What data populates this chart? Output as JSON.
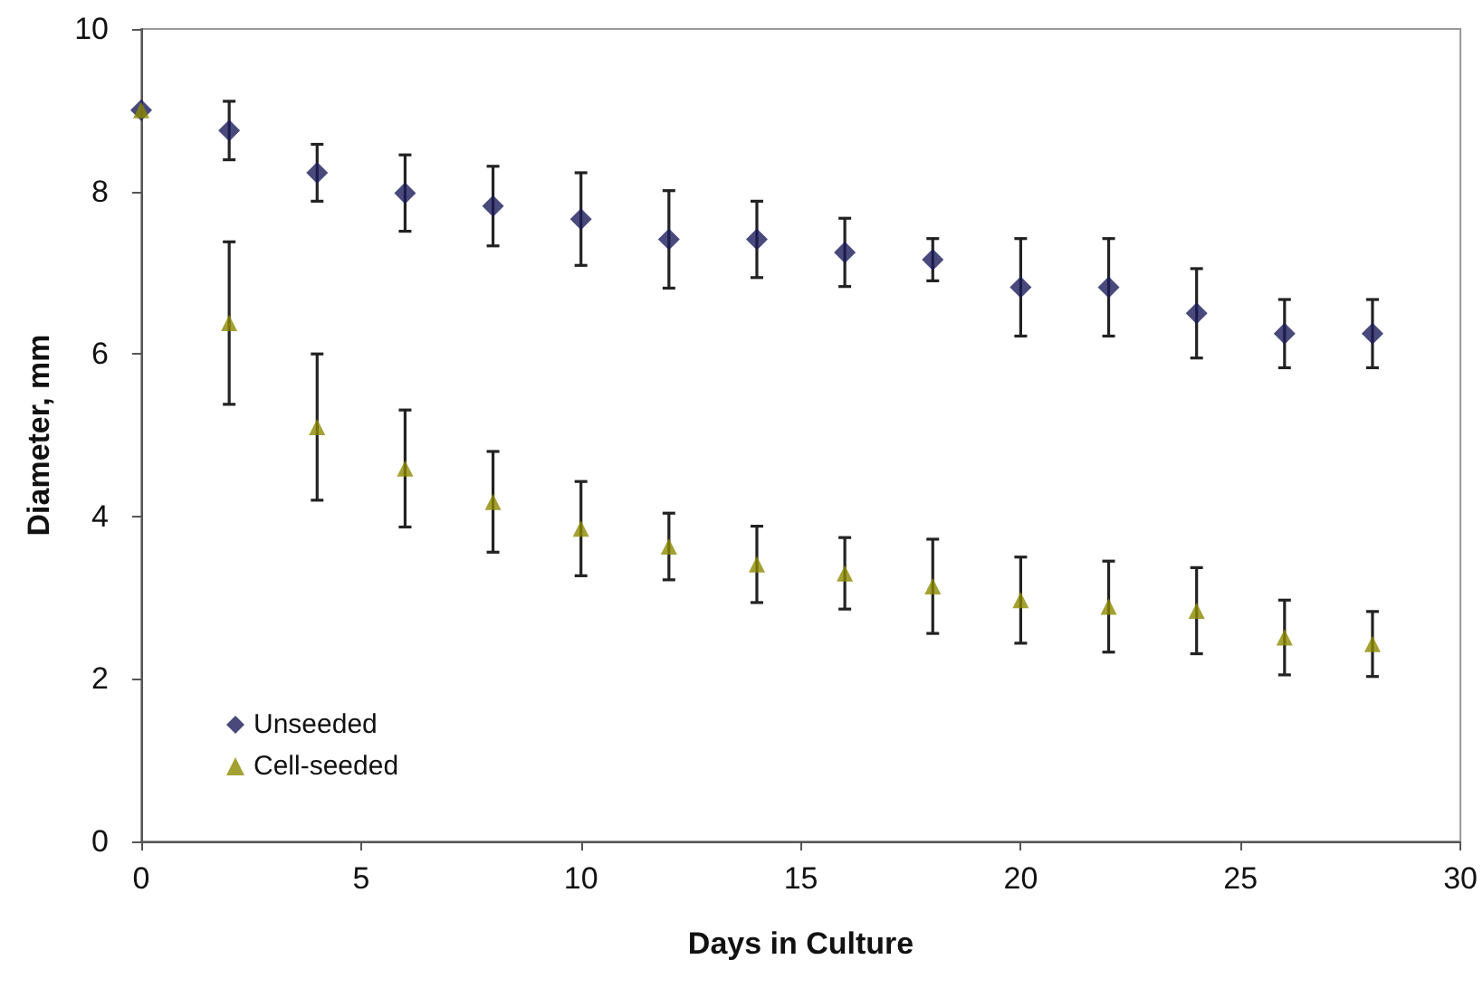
{
  "chart_data": {
    "type": "scatter",
    "xlabel": "Days in Culture",
    "ylabel": "Diameter, mm",
    "x": [
      0,
      2,
      4,
      6,
      8,
      10,
      12,
      14,
      16,
      18,
      20,
      22,
      24,
      26,
      28
    ],
    "series": [
      {
        "name": "Unseeded",
        "color": "#1c1c5a",
        "marker": "diamond",
        "values": [
          9.0,
          8.75,
          8.23,
          7.98,
          7.82,
          7.66,
          7.41,
          7.41,
          7.25,
          7.16,
          6.82,
          6.82,
          6.5,
          6.25,
          6.25
        ],
        "errors": [
          null,
          0.36,
          0.35,
          0.47,
          0.49,
          0.57,
          0.6,
          0.47,
          0.42,
          0.26,
          0.6,
          0.6,
          0.55,
          0.42,
          0.42
        ]
      },
      {
        "name": "Cell-seeded",
        "color": "#8c8a00",
        "marker": "triangle",
        "values": [
          9.0,
          6.38,
          5.1,
          4.59,
          4.18,
          3.85,
          3.63,
          3.41,
          3.3,
          3.14,
          2.97,
          2.89,
          2.84,
          2.51,
          2.43
        ],
        "errors": [
          null,
          1.0,
          0.9,
          0.72,
          0.62,
          0.58,
          0.41,
          0.47,
          0.44,
          0.58,
          0.53,
          0.56,
          0.53,
          0.46,
          0.4
        ]
      }
    ],
    "xlim": [
      0,
      30
    ],
    "xticks": [
      0,
      5,
      10,
      15,
      20,
      25,
      30
    ],
    "ylim": [
      0,
      10
    ],
    "yticks": [
      0,
      2,
      4,
      6,
      8,
      10
    ],
    "grid": false,
    "legend": "bottom left"
  }
}
